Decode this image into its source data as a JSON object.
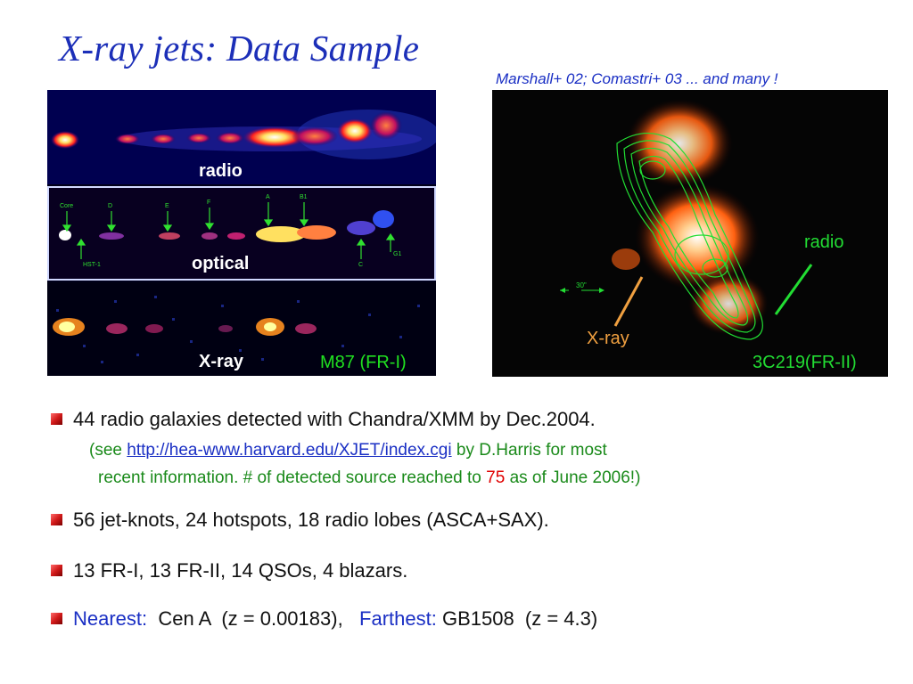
{
  "slide": {
    "title": "X-ray jets: Data Sample",
    "references": "Marshall+ 02;  Comastri+ 03 ... and many !"
  },
  "m87_figure": {
    "radio_label": "radio",
    "optical_label": "optical",
    "xray_label": "X-ray",
    "object_label": "M87 (FR-I)",
    "knots": {
      "core": "Core",
      "d": "D",
      "e": "E",
      "f": "F",
      "a": "A",
      "b1": "B1",
      "hst1": "HST-1",
      "c": "C",
      "g1": "G1"
    }
  },
  "c219_figure": {
    "radio_label": "radio",
    "xray_label": "X-ray",
    "scale_label": "30\"",
    "object_label": "3C219(FR-II)"
  },
  "bullets": {
    "b1_text": "44 radio galaxies detected with Chandra/XMM by Dec.2004.",
    "b1_sub_pre": "(see ",
    "b1_sub_link": "http://hea-www.harvard.edu/XJET/index.cgi",
    "b1_sub_post": "  by D.Harris  for most",
    "b1_sub2_pre": "recent information.  # of detected source reached to ",
    "b1_sub2_num": "75",
    "b1_sub2_post": " as of June 2006!)",
    "b2_text": "56 jet-knots, 24 hotspots, 18 radio lobes (ASCA+SAX).",
    "b3_text": "13 FR-I, 13 FR-II, 14 QSOs,  4 blazars.",
    "b4_nearest_label": "Nearest:",
    "b4_nearest_value": "  Cen A  (z = 0.00183),   ",
    "b4_farthest_label": "Farthest:",
    "b4_farthest_value": " GB1508  (z = 4.3)"
  },
  "colors": {
    "title": "#1c2fb8",
    "link": "#1a2fc4",
    "sub_text": "#1a8a1a",
    "highlight": "#e00000",
    "m87_label": "#20e020",
    "radio_contour": "#22dd33",
    "xray_pointer": "#f0a040"
  }
}
